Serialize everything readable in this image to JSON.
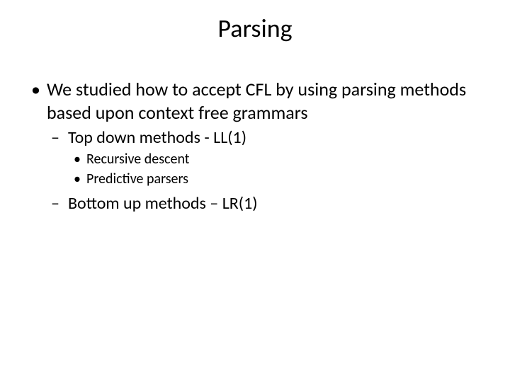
{
  "title": "Parsing",
  "title_fontsize": 36,
  "body_color": "#000000",
  "background_color": "#ffffff",
  "bullets": {
    "lvl1_fontsize": 26,
    "lvl2_fontsize": 24,
    "lvl3_fontsize": 20,
    "item1": "We studied how to accept CFL by using parsing methods based upon context free grammars",
    "item1_1": "Top down methods  -  LL(1)",
    "item1_1_1": "Recursive descent",
    "item1_1_2": "Predictive parsers",
    "item1_2": "Bottom up methods – LR(1)"
  }
}
